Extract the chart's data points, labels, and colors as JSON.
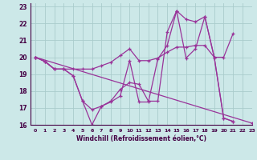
{
  "xlabel": "Windchill (Refroidissement éolien,°C)",
  "xlim": [
    -0.5,
    23
  ],
  "ylim": [
    16,
    23.2
  ],
  "yticks": [
    16,
    17,
    18,
    19,
    20,
    21,
    22,
    23
  ],
  "xticks": [
    0,
    1,
    2,
    3,
    4,
    5,
    6,
    7,
    8,
    9,
    10,
    11,
    12,
    13,
    14,
    15,
    16,
    17,
    18,
    19,
    20,
    21,
    22,
    23
  ],
  "bg_color": "#cce8e8",
  "line_color": "#993399",
  "grid_color": "#aacccc",
  "series": [
    {
      "x": [
        0,
        1,
        2,
        3,
        4,
        5,
        6,
        7,
        8,
        9,
        10,
        11,
        12,
        13,
        14,
        15,
        16,
        17,
        18,
        19,
        20,
        21
      ],
      "y": [
        20.0,
        19.75,
        19.3,
        19.3,
        19.3,
        19.3,
        19.3,
        19.5,
        19.7,
        20.1,
        20.5,
        19.8,
        19.8,
        19.95,
        20.3,
        20.6,
        20.6,
        20.7,
        20.7,
        20.0,
        20.0,
        21.4
      ]
    },
    {
      "x": [
        0,
        1,
        2,
        3,
        4,
        5,
        6,
        7,
        8,
        9,
        10,
        11,
        12,
        13,
        14,
        15,
        16,
        17,
        18,
        19,
        20,
        21
      ],
      "y": [
        20.0,
        19.75,
        19.3,
        19.3,
        18.9,
        17.4,
        16.9,
        17.1,
        17.4,
        18.1,
        18.5,
        18.4,
        17.4,
        17.4,
        21.5,
        22.75,
        22.25,
        22.1,
        22.4,
        20.0,
        16.4,
        16.2
      ]
    },
    {
      "x": [
        0,
        1,
        2,
        3,
        4,
        5,
        6,
        7,
        8,
        9,
        10,
        11,
        12,
        13,
        14,
        15,
        16,
        17,
        18,
        19,
        20,
        21
      ],
      "y": [
        20.0,
        19.75,
        19.3,
        19.3,
        18.9,
        17.4,
        16.0,
        17.1,
        17.35,
        17.7,
        19.8,
        17.35,
        17.35,
        19.9,
        20.7,
        22.75,
        19.95,
        20.5,
        22.4,
        20.0,
        16.4,
        16.2
      ]
    },
    {
      "x": [
        0,
        23
      ],
      "y": [
        20.0,
        16.1
      ]
    }
  ]
}
